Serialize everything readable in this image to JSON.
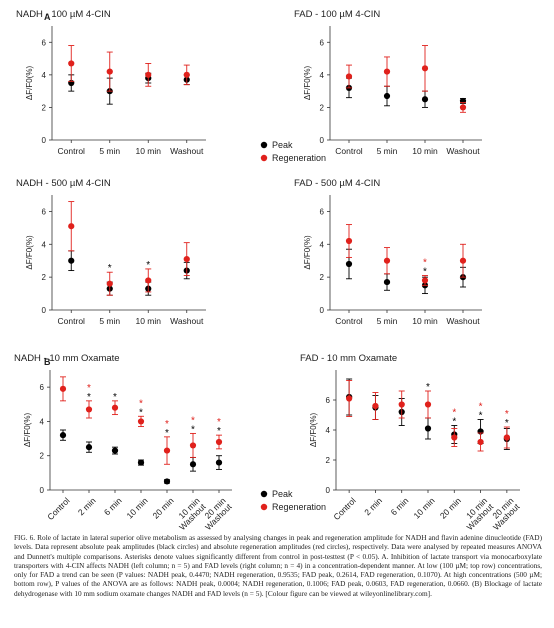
{
  "figure": {
    "section_a_label": "A",
    "section_b_label": "B",
    "colors": {
      "peak": "#000000",
      "regeneration": "#e0211c",
      "axis": "#333333"
    }
  },
  "legend_top": {
    "peak": "Peak",
    "regeneration": "Regeneration"
  },
  "legend_bottom": {
    "peak": "Peak",
    "regeneration": "Regeneration"
  },
  "chart_data": [
    {
      "id": "nadh100",
      "type": "scatter",
      "title": "NADH - 100 µM 4-CIN",
      "ylabel": "ΔF/F0(%)",
      "ylim": [
        0,
        7
      ],
      "yticks": [
        0,
        2,
        4,
        6
      ],
      "categories": [
        "Control",
        "5 min",
        "10 min",
        "Washout"
      ],
      "series": [
        {
          "name": "Peak",
          "values": [
            3.5,
            3.0,
            3.8,
            3.7
          ],
          "err": [
            0.5,
            0.8,
            0.3,
            0.3
          ],
          "stars": [
            false,
            false,
            false,
            false
          ]
        },
        {
          "name": "Regeneration",
          "values": [
            4.7,
            4.2,
            4.0,
            4.0
          ],
          "err": [
            1.1,
            1.2,
            0.7,
            0.6
          ],
          "stars": [
            false,
            false,
            false,
            false
          ]
        }
      ]
    },
    {
      "id": "fad100",
      "type": "scatter",
      "title": "FAD - 100 µM 4-CIN",
      "ylabel": "ΔF/F0(%)",
      "ylim": [
        0,
        7
      ],
      "yticks": [
        0,
        2,
        4,
        6
      ],
      "categories": [
        "Control",
        "5 min",
        "10 min",
        "Washout"
      ],
      "series": [
        {
          "name": "Peak",
          "values": [
            3.2,
            2.7,
            2.5,
            2.4
          ],
          "err": [
            0.6,
            0.6,
            0.5,
            0.15
          ],
          "stars": [
            false,
            false,
            false,
            false
          ]
        },
        {
          "name": "Regeneration",
          "values": [
            3.9,
            4.2,
            4.4,
            2.0
          ],
          "err": [
            0.7,
            0.9,
            1.4,
            0.3
          ],
          "stars": [
            false,
            false,
            false,
            false
          ]
        }
      ]
    },
    {
      "id": "nadh500",
      "type": "scatter",
      "title": "NADH - 500 µM 4-CIN",
      "ylabel": "ΔF/F0(%)",
      "ylim": [
        0,
        7
      ],
      "yticks": [
        0,
        2,
        4,
        6
      ],
      "categories": [
        "Control",
        "5 min",
        "10 min",
        "Washout"
      ],
      "series": [
        {
          "name": "Peak",
          "values": [
            3.0,
            1.3,
            1.3,
            2.4
          ],
          "err": [
            0.6,
            0.4,
            0.4,
            0.5
          ],
          "stars": [
            false,
            true,
            true,
            false
          ]
        },
        {
          "name": "Regeneration",
          "values": [
            5.1,
            1.6,
            1.8,
            3.1
          ],
          "err": [
            1.5,
            0.7,
            0.7,
            1.0
          ],
          "stars": [
            false,
            false,
            false,
            false
          ]
        }
      ]
    },
    {
      "id": "fad500",
      "type": "scatter",
      "title": "FAD - 500 µM 4-CIN",
      "ylabel": "ΔF/F0(%)",
      "ylim": [
        0,
        7
      ],
      "yticks": [
        0,
        2,
        4,
        6
      ],
      "categories": [
        "Control",
        "5 min",
        "10 min",
        "Washout"
      ],
      "series": [
        {
          "name": "Peak",
          "values": [
            2.8,
            1.7,
            1.5,
            2.0
          ],
          "err": [
            0.9,
            0.5,
            0.5,
            0.6
          ],
          "stars": [
            false,
            false,
            true,
            false
          ]
        },
        {
          "name": "Regeneration",
          "values": [
            4.2,
            3.0,
            1.8,
            3.0
          ],
          "err": [
            1.0,
            0.8,
            0.3,
            1.0
          ],
          "stars": [
            false,
            false,
            true,
            false
          ]
        }
      ]
    },
    {
      "id": "nadhox",
      "type": "scatter",
      "title": "NADH - 10 mm Oxamate",
      "ylabel": "ΔF/F0(%)",
      "ylim": [
        0,
        7
      ],
      "yticks": [
        0,
        2,
        4,
        6
      ],
      "categories": [
        "Control",
        "2 min",
        "6 min",
        "10 min",
        "20 min",
        "10 min\nWashout",
        "20 min\nWashout"
      ],
      "series": [
        {
          "name": "Peak",
          "values": [
            3.2,
            2.5,
            2.3,
            1.6,
            0.5,
            1.5,
            1.6
          ],
          "err": [
            0.3,
            0.3,
            0.2,
            0.15,
            0.1,
            0.4,
            0.4
          ],
          "stars": [
            false,
            true,
            true,
            true,
            true,
            true,
            true
          ]
        },
        {
          "name": "Regeneration",
          "values": [
            5.9,
            4.7,
            4.8,
            4.0,
            2.3,
            2.6,
            2.8
          ],
          "err": [
            0.7,
            0.5,
            0.4,
            0.3,
            0.8,
            0.7,
            0.4
          ],
          "stars": [
            false,
            true,
            false,
            true,
            true,
            true,
            true
          ]
        }
      ]
    },
    {
      "id": "fadox",
      "type": "scatter",
      "title": "FAD - 10 mm Oxamate",
      "ylabel": "ΔF/F0(%)",
      "ylim": [
        0,
        8
      ],
      "yticks": [
        0,
        2,
        4,
        6
      ],
      "categories": [
        "Control",
        "2 min",
        "6 min",
        "10 min",
        "20 min",
        "10 min\nWashout",
        "20 min\nWashout"
      ],
      "series": [
        {
          "name": "Peak",
          "values": [
            6.2,
            5.5,
            5.2,
            4.1,
            3.7,
            3.9,
            3.4
          ],
          "err": [
            1.2,
            0.8,
            0.9,
            0.7,
            0.6,
            0.8,
            0.7
          ],
          "stars": [
            false,
            false,
            false,
            true,
            true,
            true,
            true
          ]
        },
        {
          "name": "Regeneration",
          "values": [
            6.1,
            5.6,
            5.7,
            5.7,
            3.5,
            3.2,
            3.5
          ],
          "err": [
            1.2,
            0.9,
            0.9,
            0.9,
            0.6,
            0.6,
            0.7
          ],
          "stars": [
            false,
            false,
            false,
            false,
            true,
            true,
            true
          ]
        }
      ]
    }
  ],
  "caption": {
    "text": "FIG. 6. Role of lactate in lateral superior olive metabolism as assessed by analysing changes in peak and regeneration amplitude for NADH and flavin adenine dinucleotide (FAD) levels. Data represent absolute peak amplitudes (black circles) and absolute regeneration amplitudes (red circles), respectively. Data were analysed by repeated measures ANOVA and Dunnett's multiple comparisons. Asterisks denote values significantly different from control in post-testtest (P < 0.05). A. Inhibition of lactate transport via monocarboxylate transporters with 4-CIN affects NADH (left column; n = 5) and FAD levels (right column; n = 4) in a concentration-dependent manner. At low (100 µM; top row) concentrations, only for FAD a trend can be seen (P values: NADH peak, 0.4470; NADH regeneration, 0.9535; FAD peak, 0.2614, FAD regeneration, 0.1070). At high concentrations (500 µM; bottom row), P values of the ANOVA are as follows: NADH peak, 0.0004; NADH regeneration, 0.1006; FAD peak, 0.0603, FAD regeneration, 0.0660. (B) Blockage of lactate dehydrogenase with 10 mm sodium oxamate changes NADH and FAD levels (n = 5). [Colour figure can be viewed at wileyonlinelibrary.com]."
  }
}
